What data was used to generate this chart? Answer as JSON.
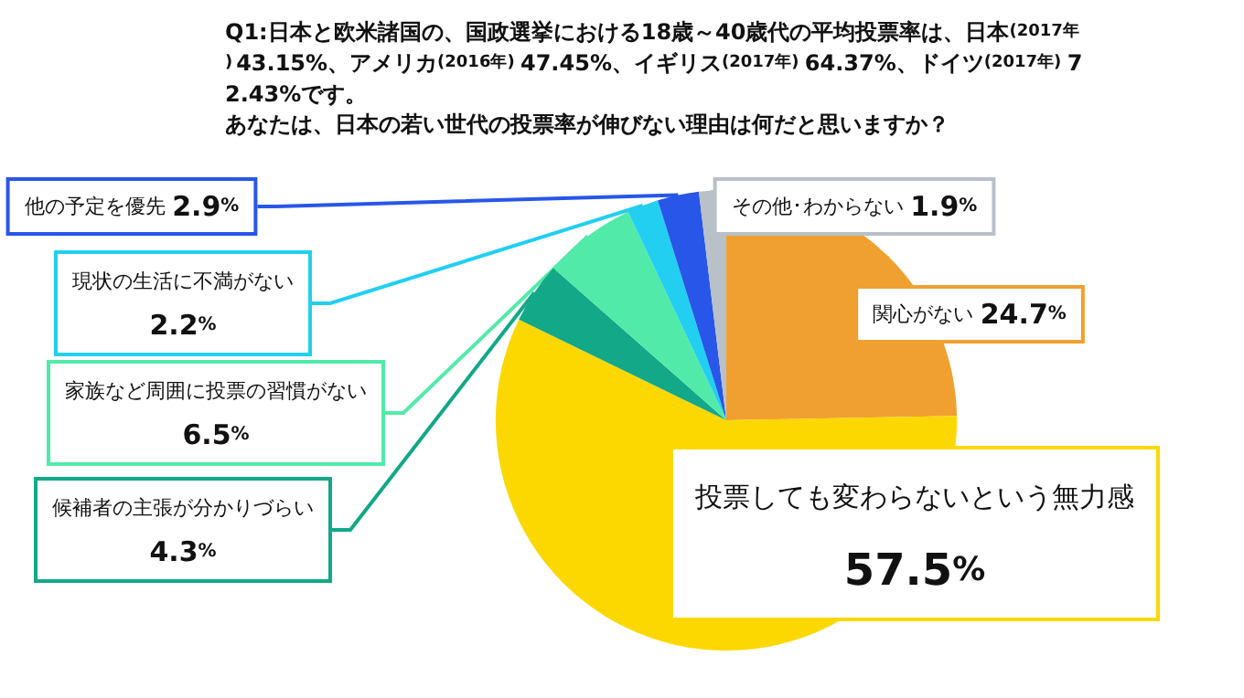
{
  "chart_data": {
    "type": "pie",
    "title": "Q1:日本と欧米諸国の、国政選挙における18歳～40歳代の平均投票率は、日本(2017年)43.15%、アメリカ(2016年)47.45%、イギリス(2017年)64.37%、ドイツ(2017年)72.43%です。",
    "subtitle": "あなたは、日本の若い世代の投票率が伸びない理由は何だと思いますか？",
    "categories": [
      "関心がない",
      "投票しても変わらないという無力感",
      "候補者の主張が分かりづらい",
      "家族など周囲に投票の習慣がない",
      "現状の生活に不満がない",
      "他の予定を優先",
      "その他･わからない"
    ],
    "values": [
      24.7,
      57.5,
      4.3,
      6.5,
      2.2,
      2.9,
      1.9
    ],
    "value_labels": [
      "24.7%",
      "57.5%",
      "4.3%",
      "6.5%",
      "2.2%",
      "2.9%",
      "1.9%"
    ],
    "colors": [
      "#f0a030",
      "#fcd800",
      "#12a888",
      "#52eaa8",
      "#22cff0",
      "#2856e8",
      "#b8c0c8"
    ],
    "legend": false
  }
}
